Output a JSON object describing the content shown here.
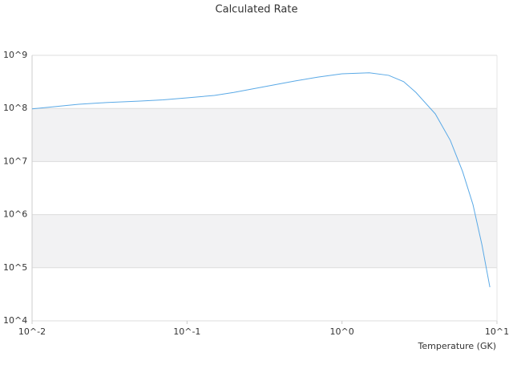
{
  "chart_data": {
    "type": "line",
    "title": "Calculated Rate",
    "x_label": "Temperature (GK)",
    "x_scale": "log",
    "y_scale": "log",
    "grid": true,
    "band_color": "#f2f2f3",
    "xlim": [
      0.01,
      10
    ],
    "ylim": [
      10000,
      1000000000
    ],
    "xticks": [
      {
        "value": 0.01,
        "label": "10^-2"
      },
      {
        "value": 0.1,
        "label": "10^-1"
      },
      {
        "value": 1,
        "label": "10^0"
      },
      {
        "value": 10,
        "label": "10^1"
      }
    ],
    "yticks": [
      {
        "value": 10000,
        "label": "10^4"
      },
      {
        "value": 100000,
        "label": "10^5"
      },
      {
        "value": 1000000,
        "label": "10^6"
      },
      {
        "value": 10000000,
        "label": "10^7"
      },
      {
        "value": 100000000,
        "label": "10^8"
      },
      {
        "value": 1000000000,
        "label": "10^9"
      }
    ],
    "x": [
      0.01,
      0.02,
      0.03,
      0.05,
      0.07,
      0.1,
      0.15,
      0.2,
      0.3,
      0.5,
      0.7,
      1,
      1.5,
      2,
      2.5,
      3,
      4,
      5,
      6,
      7,
      8,
      9
    ],
    "series": [
      {
        "color": "#5aa9e6",
        "values": [
          98000000,
          120000000,
          129000000,
          138000000,
          145000000,
          158000000,
          176000000,
          200000000,
          250000000,
          330000000,
          390000000,
          450000000,
          470000000,
          420000000,
          320000000,
          200000000,
          79000000,
          25000000,
          6500000,
          1550000,
          270000,
          43000
        ]
      }
    ]
  }
}
